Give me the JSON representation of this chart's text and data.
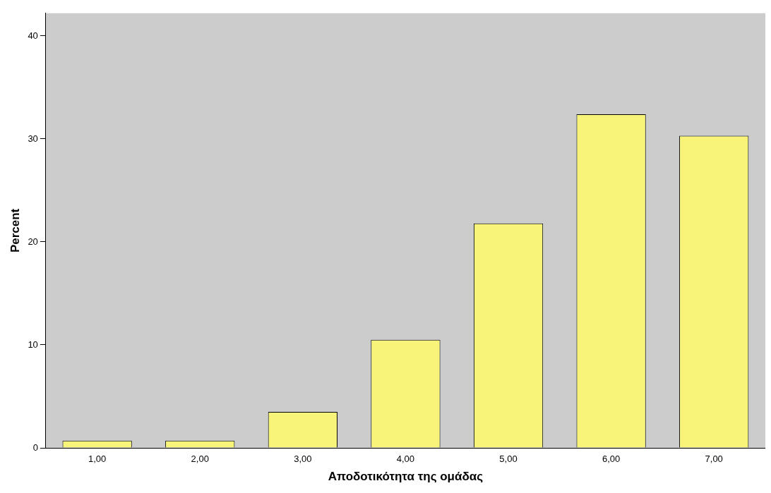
{
  "chart_data": {
    "type": "bar",
    "xlabel": "Αποδοτικότητα της ομάδας",
    "ylabel": "Percent",
    "categories": [
      "1,00",
      "2,00",
      "3,00",
      "4,00",
      "5,00",
      "6,00",
      "7,00"
    ],
    "values": [
      0.7,
      0.7,
      3.5,
      10.5,
      21.8,
      32.4,
      30.3
    ],
    "color": "#f8f47a",
    "ylim": [
      0,
      42.2
    ],
    "yticks": [
      0,
      10,
      20,
      30,
      40
    ],
    "grid": false,
    "legend": false
  }
}
